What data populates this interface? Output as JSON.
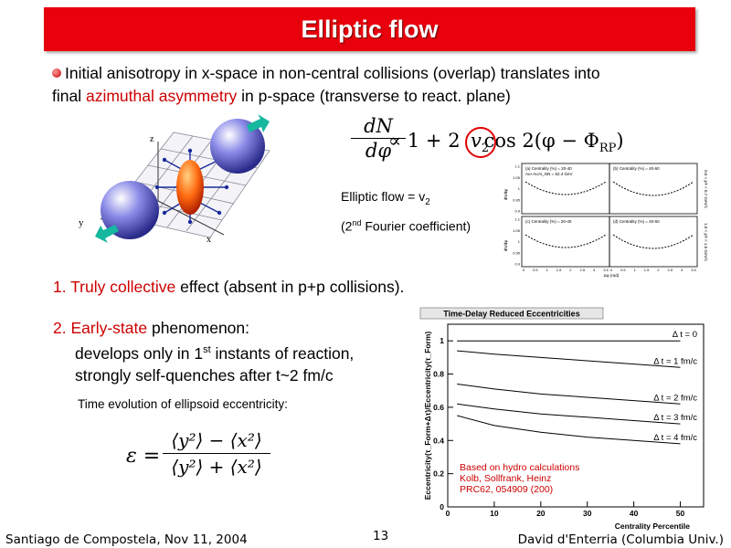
{
  "slide": {
    "title": "Elliptic flow",
    "intro": {
      "line1": "Initial anisotropy in x-space in non-central collisions (overlap) translates into",
      "line2_pre": "final ",
      "line2_red": "azimuthal asymmetry",
      "line2_post": " in p-space (transverse to react. plane)"
    },
    "formula": {
      "dN": "dN",
      "dphi": "dφ",
      "rest_pre": "∝  1  +  2",
      "v": "v",
      "v_sub": "2",
      "rest_post": "cos 2(φ − Φ",
      "rp_sub": "RP",
      "close": ")"
    },
    "elliptic_note": {
      "line1": "Elliptic flow = v",
      "line1_sub": "2",
      "line2_pre": "(2",
      "line2_sup": "nd",
      "line2_post": "  Fourier coefficient)"
    },
    "diagram_axes": {
      "z": "z",
      "y": "y",
      "x": "x"
    },
    "point1": {
      "num": "1. Truly ",
      "red": "collective",
      "rest": " effect (absent in p+p collisions)."
    },
    "point2": {
      "num": "2. ",
      "red": "Early-state",
      "rest": " phenomenon:",
      "line2_pre": "develops only in 1",
      "line2_sup": "st",
      "line2_post": " instants of reaction,",
      "line3": "strongly self-quenches after t~2 fm/c"
    },
    "time_evolution_label": "Time evolution of ellipsoid eccentricity:",
    "eps_formula": {
      "eps": "ε =",
      "num": "⟨y²⟩ − ⟨x²⟩",
      "den": "⟨y²⟩ + ⟨x²⟩"
    },
    "footer": {
      "left": "Santiago de Compostela, Nov 11, 2004",
      "page": "13",
      "right": "David d'Enterria (Columbia Univ.)"
    }
  },
  "inset_panels": {
    "y_ticks": [
      "1.1",
      "1.05",
      "1",
      "0.95",
      "0.9"
    ],
    "x_ticks": [
      "0",
      "0.5",
      "1",
      "1.5",
      "2",
      "2.5",
      "3",
      "3.5"
    ],
    "panel_a": "(a)  Centrality (%) = 20-40",
    "panel_a_sub": "Au+Au√s_NN = 62.4 GeV",
    "panel_b": "(b)  Centrality (%) = 40-60",
    "panel_c": "(c)  Centrality (%) = 20-40",
    "panel_d": "(d)  Centrality (%) = 40-60",
    "ylab": "dN/dφ",
    "xlab": "Δφ (rad)",
    "right_lab_top": "0.6 < pT < 0.7 GeV/c",
    "right_lab_bot": "1.0 < pT < 1.5 GeV/c"
  },
  "chart_data": {
    "type": "line",
    "title": "Time-Delay Reduced Eccentricities",
    "xlabel": "Centrality Percentile",
    "ylabel": "Eccentricity(τ_Form+Δτ)/Eccentricity(τ_Form)",
    "xlim": [
      0,
      55
    ],
    "ylim": [
      0,
      1.1
    ],
    "x_ticks": [
      "0",
      "10",
      "20",
      "30",
      "40",
      "50"
    ],
    "y_ticks": [
      "0",
      "0.2",
      "0.4",
      "0.6",
      "0.8",
      "1"
    ],
    "series": [
      {
        "name": "Δ t = 0",
        "x": [
          2,
          10,
          20,
          30,
          40,
          50
        ],
        "y": [
          1.0,
          1.0,
          1.0,
          1.0,
          1.0,
          1.0
        ]
      },
      {
        "name": "Δ t = 1 fm/c",
        "x": [
          2,
          10,
          20,
          30,
          40,
          50
        ],
        "y": [
          0.94,
          0.92,
          0.9,
          0.88,
          0.86,
          0.84
        ]
      },
      {
        "name": "Δ t = 2 fm/c",
        "x": [
          2,
          10,
          20,
          30,
          40,
          50
        ],
        "y": [
          0.74,
          0.71,
          0.68,
          0.66,
          0.64,
          0.62
        ]
      },
      {
        "name": "Δ t = 3 fm/c",
        "x": [
          2,
          10,
          20,
          30,
          40,
          50
        ],
        "y": [
          0.62,
          0.59,
          0.56,
          0.54,
          0.52,
          0.5
        ]
      },
      {
        "name": "Δ t = 4 fm/c",
        "x": [
          2,
          10,
          20,
          30,
          40,
          50
        ],
        "y": [
          0.55,
          0.49,
          0.45,
          0.42,
          0.4,
          0.38
        ]
      }
    ],
    "annotation": [
      "Based on hydro calculations",
      "Kolb, Sollfrank, Heinz",
      "PRC62, 054909 (200)"
    ]
  }
}
